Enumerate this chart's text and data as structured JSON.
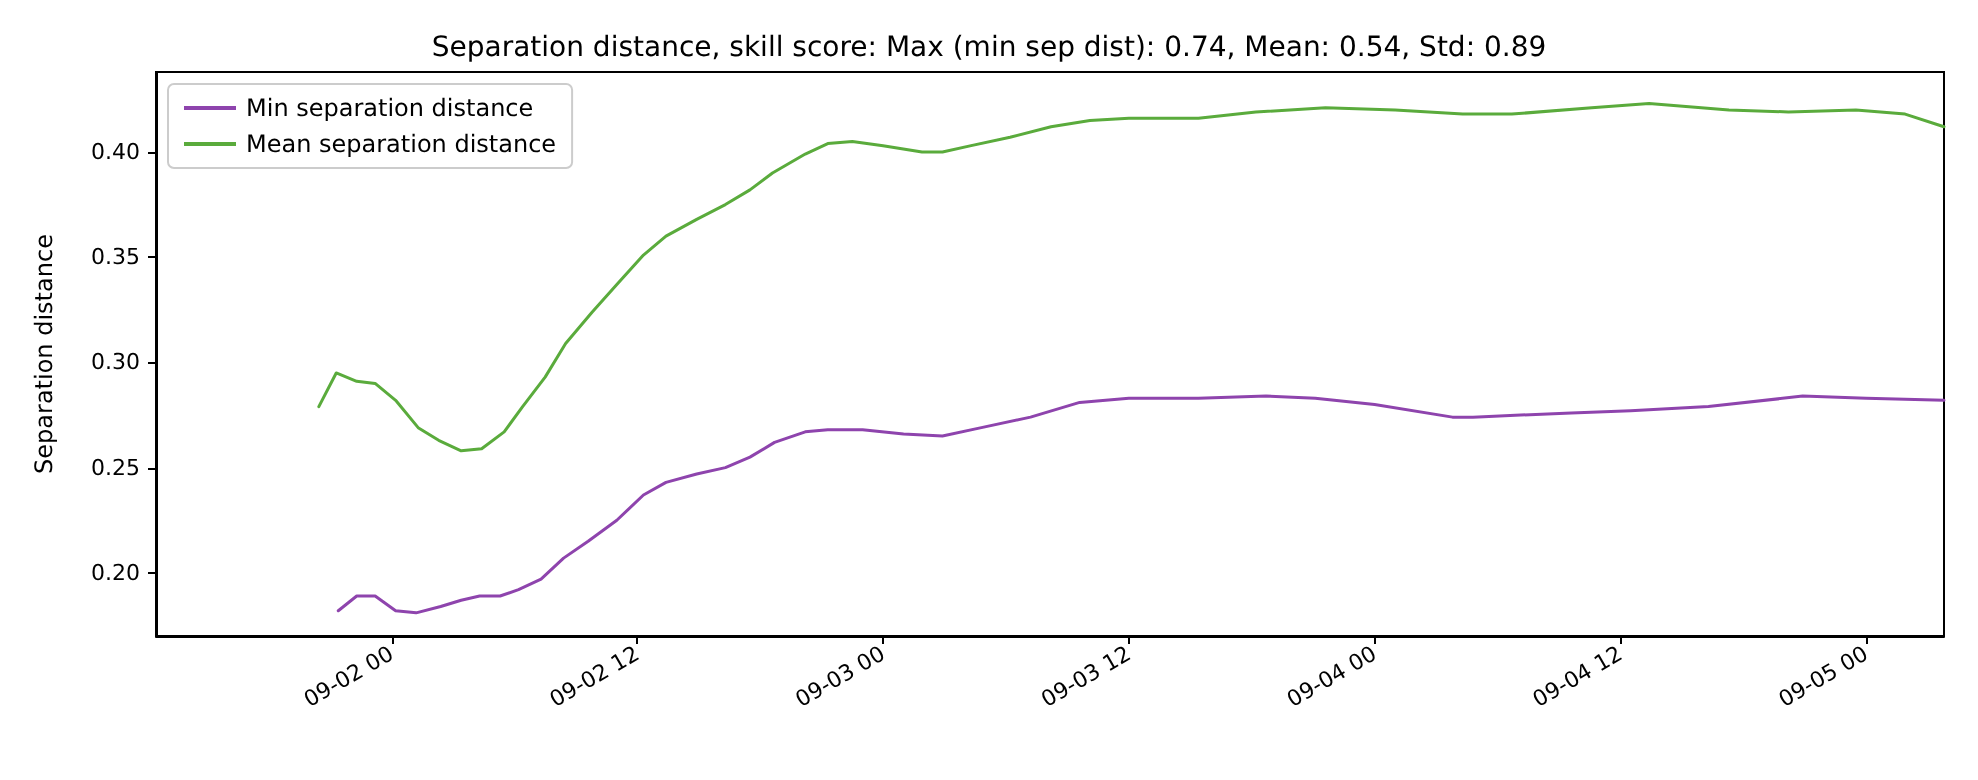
{
  "chart_data": {
    "type": "line",
    "title": "Separation distance, skill score: Max (min sep dist): 0.74, Mean: 0.54, Std: 0.89",
    "ylabel": "Separation distance",
    "xlim": [
      "--09-01T12:30",
      "--09-05T03:48"
    ],
    "xticks": [
      {
        "value": "--09-02T00:00",
        "label": "09-02 00"
      },
      {
        "value": "--09-02T12:00",
        "label": "09-02 12"
      },
      {
        "value": "--09-03T00:00",
        "label": "09-03 00"
      },
      {
        "value": "--09-03T12:00",
        "label": "09-03 12"
      },
      {
        "value": "--09-04T00:00",
        "label": "09-04 00"
      },
      {
        "value": "--09-04T12:00",
        "label": "09-04 12"
      },
      {
        "value": "--09-05T00:00",
        "label": "09-05 00"
      }
    ],
    "ylim": [
      0.17,
      0.438
    ],
    "yticks": [
      {
        "value": 0.2,
        "label": "0.20"
      },
      {
        "value": 0.25,
        "label": "0.25"
      },
      {
        "value": 0.3,
        "label": "0.30"
      },
      {
        "value": 0.35,
        "label": "0.35"
      },
      {
        "value": 0.4,
        "label": "0.40"
      }
    ],
    "grid": false,
    "legend": "top left",
    "line_style": "solid",
    "marker": "none",
    "series": [
      {
        "name": "Min separation distance",
        "color": "#8e44ad",
        "x": [
          "--09-01T21:24",
          "--09-01T22:18",
          "--09-01T23:12",
          "--09-02T00:12",
          "--09-02T01:12",
          "--09-02T02:24",
          "--09-02T03:24",
          "--09-02T04:18",
          "--09-02T05:18",
          "--09-02T06:12",
          "--09-02T07:18",
          "--09-02T08:24",
          "--09-02T09:36",
          "--09-02T11:00",
          "--09-02T12:18",
          "--09-02T13:24",
          "--09-02T14:54",
          "--09-02T16:18",
          "--09-02T17:30",
          "--09-02T18:42",
          "--09-02T20:12",
          "--09-02T21:18",
          "--09-02T23:00",
          "--09-03T01:00",
          "--09-03T02:54",
          "--09-03T04:48",
          "--09-03T07:12",
          "--09-03T09:36",
          "--09-03T12:00",
          "--09-03T15:24",
          "--09-03T18:42",
          "--09-03T21:06",
          "--09-04T00:00",
          "--09-04T03:48",
          "--09-04T04:48",
          "--09-04T09:36",
          "--09-04T12:30",
          "--09-04T16:18",
          "--09-04T20:54",
          "--09-05T00:00",
          "--09-05T03:48"
        ],
        "values": [
          0.182,
          0.189,
          0.189,
          0.182,
          0.181,
          0.184,
          0.187,
          0.189,
          0.189,
          0.192,
          0.197,
          0.207,
          0.215,
          0.225,
          0.237,
          0.243,
          0.247,
          0.25,
          0.255,
          0.262,
          0.267,
          0.268,
          0.268,
          0.266,
          0.265,
          0.269,
          0.274,
          0.281,
          0.283,
          0.283,
          0.284,
          0.283,
          0.28,
          0.274,
          0.274,
          0.276,
          0.277,
          0.279,
          0.284,
          0.283,
          0.282
        ]
      },
      {
        "name": "Mean separation distance",
        "color": "#5aab3c",
        "x": [
          "--09-01T20:27",
          "--09-01T21:18",
          "--09-01T22:18",
          "--09-01T23:12",
          "--09-02T00:12",
          "--09-02T01:18",
          "--09-02T02:18",
          "--09-02T03:24",
          "--09-02T04:24",
          "--09-02T05:30",
          "--09-02T06:24",
          "--09-02T07:30",
          "--09-02T08:30",
          "--09-02T09:48",
          "--09-02T11:00",
          "--09-02T12:18",
          "--09-02T13:24",
          "--09-02T14:54",
          "--09-02T16:18",
          "--09-02T17:30",
          "--09-02T18:36",
          "--09-02T20:12",
          "--09-02T21:18",
          "--09-02T22:30",
          "--09-03T00:00",
          "--09-03T01:54",
          "--09-03T02:54",
          "--09-03T04:18",
          "--09-03T06:12",
          "--09-03T08:12",
          "--09-03T10:06",
          "--09-03T12:00",
          "--09-03T15:24",
          "--09-03T18:12",
          "--09-03T21:36",
          "--09-04T01:00",
          "--09-04T04:18",
          "--09-04T06:42",
          "--09-04T10:36",
          "--09-04T13:24",
          "--09-04T17:18",
          "--09-04T20:12",
          "--09-04T23:30",
          "--09-05T01:54",
          "--09-05T03:48"
        ],
        "values": [
          0.279,
          0.295,
          0.291,
          0.29,
          0.282,
          0.269,
          0.263,
          0.258,
          0.259,
          0.267,
          0.279,
          0.293,
          0.309,
          0.324,
          0.337,
          0.351,
          0.36,
          0.368,
          0.375,
          0.382,
          0.39,
          0.399,
          0.404,
          0.405,
          0.403,
          0.4,
          0.4,
          0.403,
          0.407,
          0.412,
          0.415,
          0.416,
          0.416,
          0.419,
          0.421,
          0.42,
          0.418,
          0.418,
          0.421,
          0.423,
          0.42,
          0.419,
          0.42,
          0.418,
          0.412
        ]
      }
    ]
  }
}
